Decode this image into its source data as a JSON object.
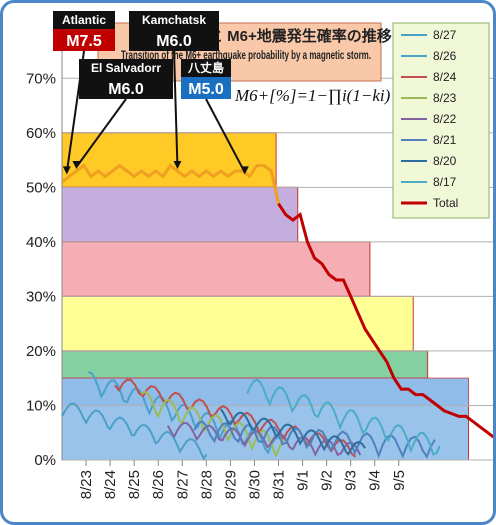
{
  "chart_data": {
    "type": "line",
    "title_jp": "気象と M6+地震発生確率の推移",
    "title_en": "Transition of the M6+ earthquake probability by a magnetic storm.",
    "formula": "M6+[%]=1−∏i(1−ki)",
    "ylim": [
      0,
      0.75
    ],
    "y_ticks": [
      "0%",
      "10%",
      "20%",
      "30%",
      "40%",
      "50%",
      "60%",
      "70%"
    ],
    "x_ticks": [
      "8/23",
      "8/24",
      "8/25",
      "8/26",
      "8/27",
      "8/28",
      "8/29",
      "8/30",
      "8/31",
      "9/1",
      "9/2",
      "9/3",
      "9/4",
      "9/5"
    ],
    "legend": [
      "8/27",
      "8/26",
      "8/24",
      "8/23",
      "8/22",
      "8/21",
      "8/20",
      "8/17",
      "Total"
    ],
    "legend_colors": [
      "#4aa0c8",
      "#4aa0c8",
      "#c0504d",
      "#9bbb59",
      "#8064a2",
      "#4f81bd",
      "#2c6e9e",
      "#4bacc6",
      "#c00000"
    ],
    "bands": [
      {
        "x0": 0,
        "x1": 8.9,
        "y": 0.6,
        "color": "#ffc000"
      },
      {
        "x0": 0,
        "x1": 9.8,
        "y": 0.5,
        "color": "#b8a0d8"
      },
      {
        "x0": 0,
        "x1": 12.8,
        "y": 0.4,
        "color": "#f4a0a8"
      },
      {
        "x0": 0,
        "x1": 14.6,
        "y": 0.3,
        "color": "#ffff80"
      },
      {
        "x0": 0,
        "x1": 15.2,
        "y": 0.2,
        "color": "#70c890"
      },
      {
        "x0": 0,
        "x1": 16.9,
        "y": 0.15,
        "color": "#88b8e8"
      }
    ],
    "total_x": [
      0,
      0.3,
      0.6,
      0.9,
      1.2,
      1.5,
      1.8,
      2.1,
      2.4,
      2.7,
      3.0,
      3.3,
      3.6,
      3.9,
      4.2,
      4.5,
      4.8,
      5.1,
      5.4,
      5.7,
      6.0,
      6.3,
      6.6,
      6.9,
      7.2,
      7.5,
      7.8,
      8.1,
      8.4,
      8.7,
      9.0,
      9.3,
      9.6,
      9.9,
      10.2,
      10.5,
      10.8,
      11.1,
      11.4,
      11.7,
      12.0,
      12.3,
      12.6,
      12.9,
      13.2,
      13.5,
      13.8,
      14.1,
      14.4,
      14.7,
      15.0,
      15.3,
      15.6,
      15.9,
      16.2,
      16.5,
      16.8,
      17.1,
      17.4,
      17.7,
      18.0
    ],
    "total_y": [
      0.51,
      0.52,
      0.53,
      0.54,
      0.52,
      0.53,
      0.52,
      0.53,
      0.54,
      0.53,
      0.52,
      0.53,
      0.52,
      0.53,
      0.52,
      0.54,
      0.53,
      0.52,
      0.53,
      0.52,
      0.53,
      0.52,
      0.53,
      0.52,
      0.53,
      0.53,
      0.52,
      0.54,
      0.54,
      0.53,
      0.47,
      0.45,
      0.44,
      0.45,
      0.4,
      0.37,
      0.36,
      0.34,
      0.33,
      0.33,
      0.3,
      0.27,
      0.24,
      0.22,
      0.2,
      0.18,
      0.15,
      0.13,
      0.13,
      0.12,
      0.12,
      0.11,
      0.1,
      0.09,
      0.085,
      0.08,
      0.08,
      0.07,
      0.06,
      0.05,
      0.04
    ],
    "annotations": [
      {
        "place": "Atlantic",
        "mag": "M7.5",
        "x": 0.2,
        "y": 0.52
      },
      {
        "place": "El Salvadorr",
        "mag": "M6.0",
        "x": 0.6,
        "y": 0.53
      },
      {
        "place": "Kamchatsk",
        "mag": "M6.0",
        "x": 4.8,
        "y": 0.53
      },
      {
        "place": "八丈島",
        "mag": "M5.0",
        "x": 7.6,
        "y": 0.52
      }
    ]
  }
}
